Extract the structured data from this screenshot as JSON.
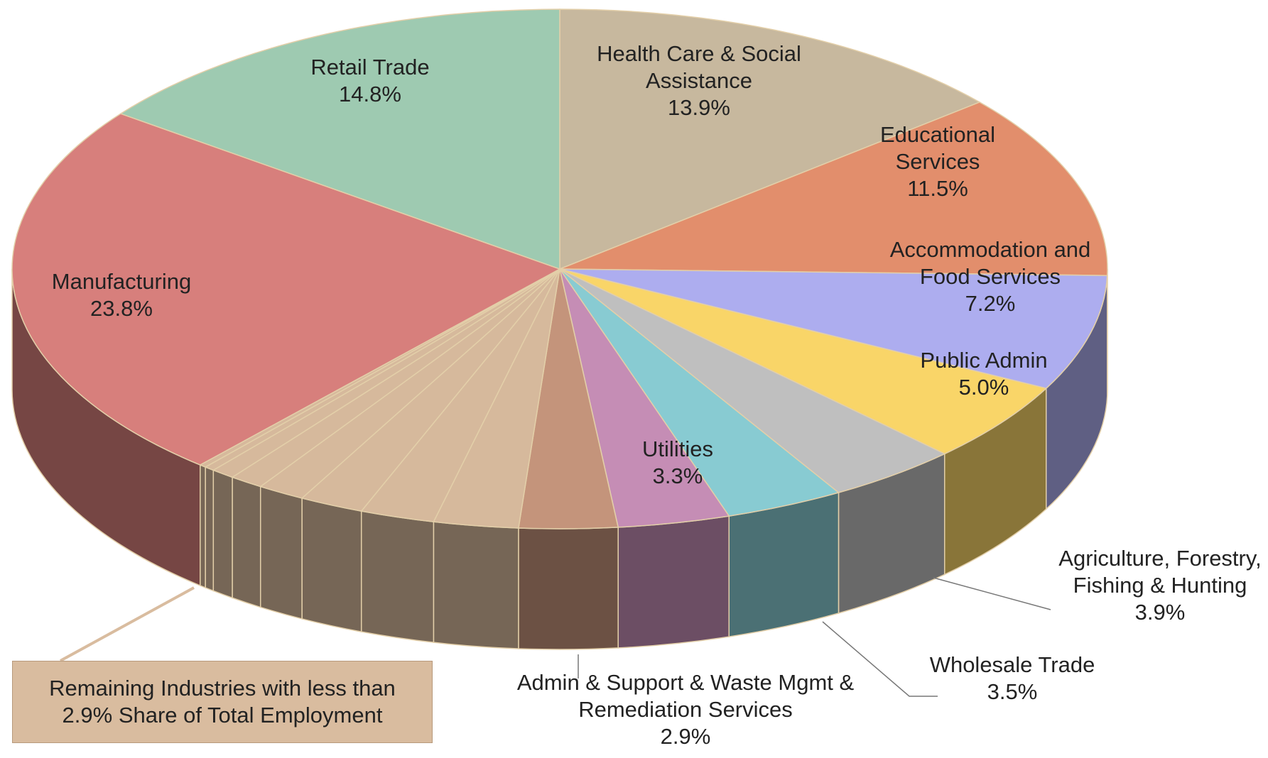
{
  "chart_data": {
    "type": "pie",
    "categories": [
      "Health Care & Social Assistance",
      "Educational Services",
      "Accommodation and Food Services",
      "Public Admin",
      "Agriculture, Forestry, Fishing & Hunting",
      "Wholesale Trade",
      "Utilities",
      "Admin & Support & Waste Mgmt & Remediation Services",
      null,
      null,
      null,
      null,
      null,
      null,
      null,
      null,
      "Manufacturing",
      "Retail Trade"
    ],
    "values": [
      13.9,
      11.5,
      7.2,
      5.0,
      3.9,
      3.5,
      3.3,
      2.9,
      2.5,
      2.2,
      1.9,
      1.4,
      1.0,
      0.7,
      0.3,
      0.2,
      23.8,
      14.8
    ],
    "value_labels": [
      "13.9%",
      "11.5%",
      "7.2%",
      "5.0%",
      "3.9%",
      "3.5%",
      "3.3%",
      "2.9%",
      null,
      null,
      null,
      null,
      null,
      null,
      null,
      null,
      "23.8%",
      "14.8%"
    ],
    "colors": [
      "#c7b89e",
      "#e28e6c",
      "#adadef",
      "#f9d568",
      "#bfbfbf",
      "#88cbd2",
      "#c58db5",
      "#c4947b",
      "#d6b99c",
      "#d6b99c",
      "#d6b99c",
      "#d6b99c",
      "#d6b99c",
      "#d6b99c",
      "#d6b99c",
      "#d6b99c",
      "#d77f7c",
      "#9ecab1"
    ],
    "annotations": [
      "Remaining Industries with less than 2.9% Share of Total Employment"
    ]
  }
}
